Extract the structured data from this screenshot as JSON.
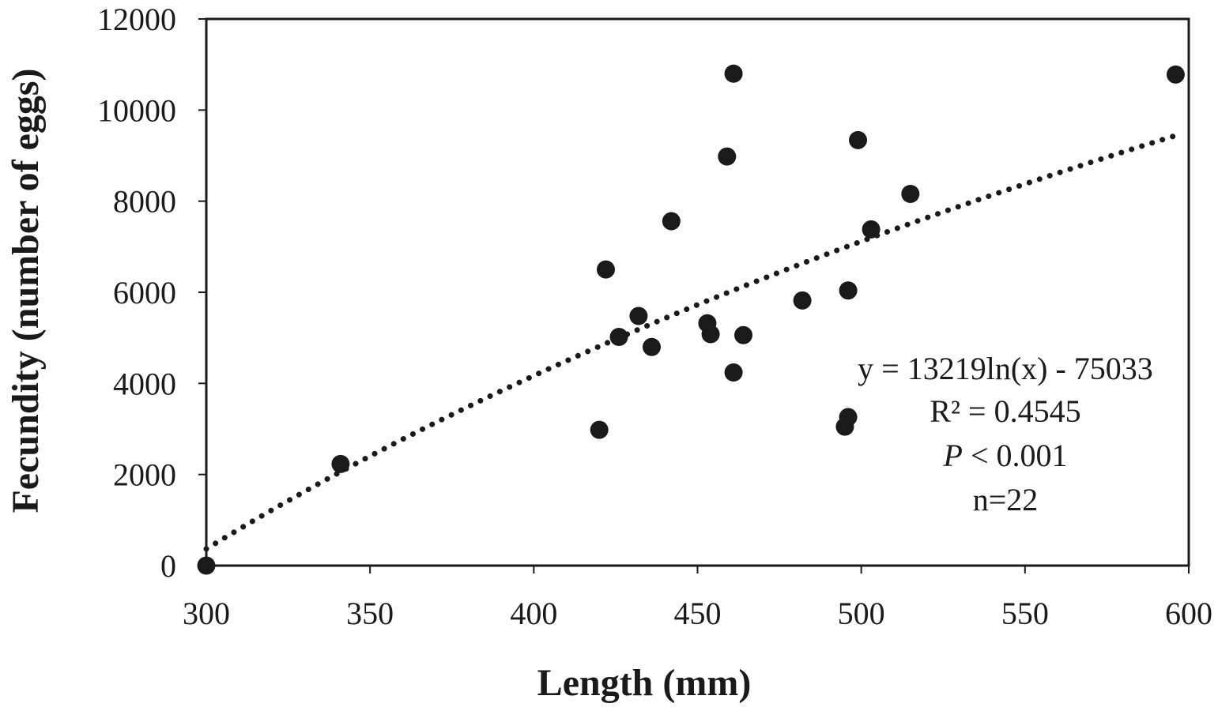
{
  "chart_data": {
    "type": "scatter",
    "title": "",
    "xlabel": "Length (mm)",
    "ylabel": "Fecundity (number of eggs)",
    "xlim": [
      300,
      600
    ],
    "ylim": [
      0,
      12000
    ],
    "xticks": [
      "300",
      "350",
      "400",
      "450",
      "500",
      "550",
      "600"
    ],
    "yticks": [
      "0",
      "2000",
      "4000",
      "6000",
      "8000",
      "10000",
      "12000"
    ],
    "grid": false,
    "legend": "none",
    "series": [
      {
        "x": [
          300,
          341,
          420,
          422,
          426,
          432,
          436,
          442,
          453,
          454,
          459,
          461,
          461,
          464,
          482,
          495,
          496,
          496,
          499,
          503,
          515,
          596
        ],
        "y": [
          0,
          2230,
          2980,
          6500,
          5020,
          5480,
          4800,
          7560,
          5320,
          5080,
          8980,
          10800,
          4240,
          5060,
          5820,
          3050,
          6040,
          3260,
          9340,
          7380,
          8160,
          10780
        ]
      }
    ],
    "trendline": {
      "type": "logarithmic",
      "a": 13219,
      "b": -75033,
      "x_range": [
        300,
        596
      ],
      "style": "dotted"
    },
    "annotations": {
      "equation": "y = 13219ln(x) - 75033",
      "r2": "R² = 0.4545",
      "p_symbol": "P",
      "p_rest": " < 0.001",
      "n": "n=22"
    },
    "colors": {
      "marker": "#1a1a1a",
      "trendline": "#1a1a1a",
      "axis": "#1a1a1a"
    }
  }
}
